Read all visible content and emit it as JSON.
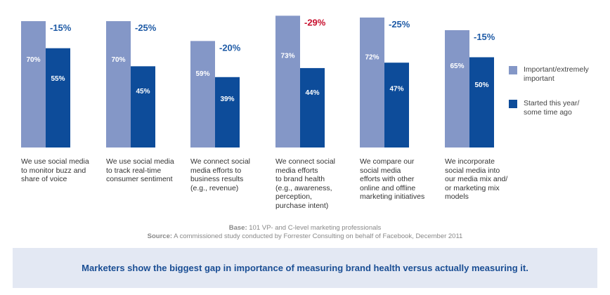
{
  "chart_data": {
    "type": "bar",
    "title": "",
    "xlabel": "",
    "ylabel": "",
    "ylim": [
      0,
      80
    ],
    "categories": [
      "We use social media to monitor buzz and share of voice",
      "We use social media to track real-time consumer sentiment",
      "We connect social media efforts to business results (e.g., revenue)",
      "We connect social media efforts to brand health (e.g., awareness, perception, purchase intent)",
      "We compare our social media efforts with other online and offline marketing initiatives",
      "We incorporate social media into our media mix and/ or marketing mix models"
    ],
    "category_lines": [
      [
        "We use social media",
        "to monitor buzz and",
        "share of voice"
      ],
      [
        "We use social media",
        "to track real-time",
        "consumer sentiment"
      ],
      [
        "We connect social",
        "media efforts to",
        "business results",
        "(e.g., revenue)"
      ],
      [
        "We connect social",
        "media efforts",
        "to brand health",
        "(e.g., awareness,",
        "perception,",
        "purchase intent)"
      ],
      [
        "We compare our",
        "social media",
        "efforts with other",
        "online and offline",
        "marketing initiatives"
      ],
      [
        "We incorporate",
        "social media into",
        "our media mix and/",
        "or marketing mix",
        "models"
      ]
    ],
    "series": [
      {
        "name": "Important/extremely important",
        "values": [
          70,
          70,
          59,
          73,
          72,
          65
        ],
        "labels": [
          "70%",
          "70%",
          "59%",
          "73%",
          "72%",
          "65%"
        ]
      },
      {
        "name": "Started this year/ some time ago",
        "values": [
          55,
          45,
          39,
          44,
          47,
          50
        ],
        "labels": [
          "55%",
          "45%",
          "39%",
          "44%",
          "47%",
          "50%"
        ]
      }
    ],
    "gaps": [
      "-15%",
      "-25%",
      "-20%",
      "-29%",
      "-25%",
      "-15%"
    ],
    "highlight_gap_index": 3,
    "legend": [
      {
        "lines": [
          "Important/extremely",
          "important"
        ]
      },
      {
        "lines": [
          "Started this year/",
          "some time ago"
        ]
      }
    ],
    "legend_position": "right"
  },
  "notes": {
    "base_key": "Base:",
    "base_text": " 101 VP- and C-level marketing professionals",
    "source_key": "Source:",
    "source_text": " A commissioned study conducted by Forrester Consulting on behalf of Facebook, December 2011"
  },
  "banner": {
    "text": "Marketers show the biggest gap in importance of measuring brand health versus actually measuring it."
  },
  "colors": {
    "series_light": "#8497c7",
    "series_dark": "#0d4c9a",
    "gap_text": "#1f5ba6",
    "gap_highlight": "#c8102e",
    "banner_bg": "#e3e8f3",
    "banner_text": "#1a4e94"
  }
}
